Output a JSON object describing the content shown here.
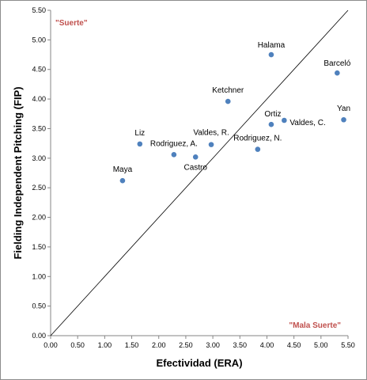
{
  "chart_data": {
    "type": "scatter",
    "xlabel": "Efectividad (ERA)",
    "ylabel": "Fielding Independent Pitching (FIP)",
    "xlim": [
      0,
      5.5
    ],
    "ylim": [
      0,
      5.5
    ],
    "x_ticks": [
      "0.00",
      "0.50",
      "1.00",
      "1.50",
      "2.00",
      "2.50",
      "3.00",
      "3.50",
      "4.00",
      "4.50",
      "5.00",
      "5.50"
    ],
    "y_ticks": [
      "0.00",
      "0.50",
      "1.00",
      "1.50",
      "2.00",
      "2.50",
      "3.00",
      "3.50",
      "4.00",
      "4.50",
      "5.00",
      "5.50"
    ],
    "grid": false,
    "reference_line": {
      "from": [
        0,
        0
      ],
      "to": [
        5.5,
        5.5
      ]
    },
    "point_color": "#4f81bd",
    "annotation_color": "#c0504d",
    "annotations": [
      {
        "text": "\"Suerte\"",
        "position": "top-left"
      },
      {
        "text": "\"Mala Suerte\"",
        "position": "bottom-right"
      }
    ],
    "points": [
      {
        "label": "Halama",
        "x": 4.08,
        "y": 4.75
      },
      {
        "label": "Barceló",
        "x": 5.3,
        "y": 4.44
      },
      {
        "label": "Ketchner",
        "x": 3.28,
        "y": 3.96
      },
      {
        "label": "Yan",
        "x": 5.42,
        "y": 3.65
      },
      {
        "label": "Ortiz",
        "x": 4.08,
        "y": 3.57
      },
      {
        "label": "Valdes, C.",
        "x": 4.32,
        "y": 3.64
      },
      {
        "label": "Liz",
        "x": 1.65,
        "y": 3.24
      },
      {
        "label": "Valdes, R.",
        "x": 2.97,
        "y": 3.23
      },
      {
        "label": "Rodriguez, N.",
        "x": 3.83,
        "y": 3.15
      },
      {
        "label": "Rodriguez, A.",
        "x": 2.28,
        "y": 3.06
      },
      {
        "label": "Castro",
        "x": 2.68,
        "y": 3.02
      },
      {
        "label": "Maya",
        "x": 1.33,
        "y": 2.62
      }
    ]
  }
}
